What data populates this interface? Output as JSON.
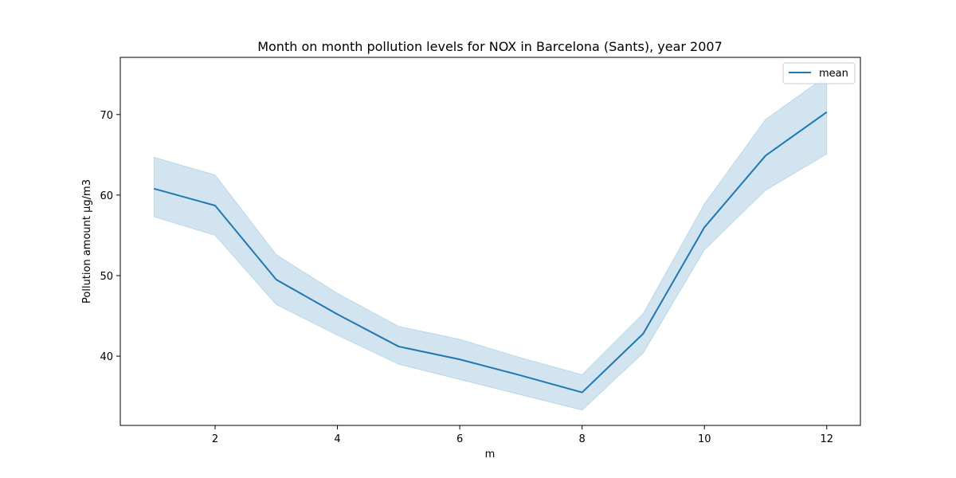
{
  "chart_data": {
    "type": "line",
    "title": "Month on month pollution levels for NOX in Barcelona (Sants), year 2007",
    "xlabel": "m",
    "ylabel": "Pollution amount µg/m3",
    "x": [
      1,
      2,
      3,
      4,
      5,
      6,
      7,
      8,
      9,
      10,
      11,
      12
    ],
    "series": [
      {
        "name": "mean",
        "values": [
          60.8,
          58.7,
          49.5,
          45.2,
          41.2,
          39.6,
          37.6,
          35.5,
          42.8,
          56.0,
          64.9,
          70.3
        ],
        "lower": [
          57.3,
          55.0,
          46.4,
          42.6,
          39.0,
          37.1,
          35.2,
          33.3,
          40.4,
          53.2,
          60.6,
          65.1
        ],
        "upper": [
          64.7,
          62.5,
          52.6,
          47.8,
          43.7,
          42.1,
          39.8,
          37.7,
          45.3,
          58.9,
          69.4,
          74.8
        ],
        "color": "#1f77b4",
        "band_color": "#1f77b4"
      }
    ],
    "xlim": [
      0.45,
      12.55
    ],
    "ylim": [
      31.4,
      77.1
    ],
    "xticks": [
      2,
      4,
      6,
      8,
      10,
      12
    ],
    "yticks": [
      40,
      50,
      60,
      70
    ],
    "grid": false,
    "legend_position": "upper right"
  }
}
